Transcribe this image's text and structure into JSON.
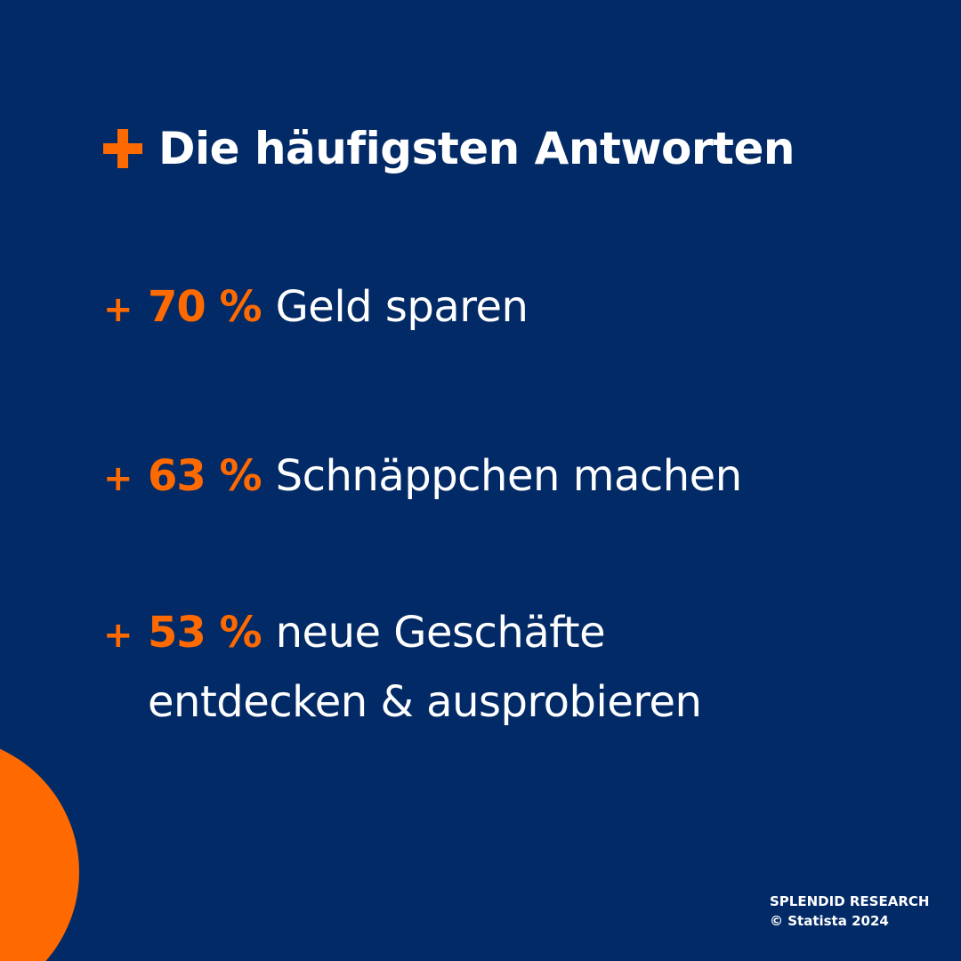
{
  "colors": {
    "background": "#022a66",
    "accent": "#ff6a00",
    "text": "#ffffff"
  },
  "heading": {
    "icon": "plus-icon",
    "text": "Die häufigsten Antworten"
  },
  "items": [
    {
      "icon": "plus-icon",
      "plus": "+",
      "percent": "70 %",
      "label": "Geld sparen"
    },
    {
      "icon": "plus-icon",
      "plus": "+",
      "percent": "63 %",
      "label": "Schnäppchen machen"
    },
    {
      "icon": "plus-icon",
      "plus": "+",
      "percent": "53 %",
      "label": "neue Geschäfte",
      "label_continued": "entdecken & ausprobieren"
    }
  ],
  "footer": {
    "line1": "SPLENDID RESEARCH",
    "line2": "© Statista 2024"
  }
}
